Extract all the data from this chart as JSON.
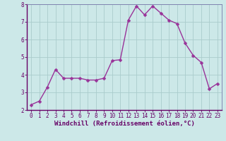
{
  "x": [
    0,
    1,
    2,
    3,
    4,
    5,
    6,
    7,
    8,
    9,
    10,
    11,
    12,
    13,
    14,
    15,
    16,
    17,
    18,
    19,
    20,
    21,
    22,
    23
  ],
  "y": [
    2.3,
    2.5,
    3.3,
    4.3,
    3.8,
    3.8,
    3.8,
    3.7,
    3.7,
    3.8,
    4.8,
    4.85,
    7.1,
    7.9,
    7.4,
    7.9,
    7.5,
    7.1,
    6.9,
    5.8,
    5.1,
    4.7,
    3.2,
    3.5
  ],
  "line_color": "#993399",
  "marker": "D",
  "marker_size": 2.5,
  "bg_color": "#cce8e8",
  "grid_color": "#aacccc",
  "xlabel": "Windchill (Refroidissement éolien,°C)",
  "xlabel_color": "#660066",
  "tick_color": "#660066",
  "ylim": [
    2,
    8
  ],
  "yticks": [
    2,
    3,
    4,
    5,
    6,
    7,
    8
  ],
  "xticks": [
    0,
    1,
    2,
    3,
    4,
    5,
    6,
    7,
    8,
    9,
    10,
    11,
    12,
    13,
    14,
    15,
    16,
    17,
    18,
    19,
    20,
    21,
    22,
    23
  ],
  "spine_color": "#7777aa",
  "axisline_color": "#660066",
  "tick_fontsize": 5.5,
  "xlabel_fontsize": 6.5
}
